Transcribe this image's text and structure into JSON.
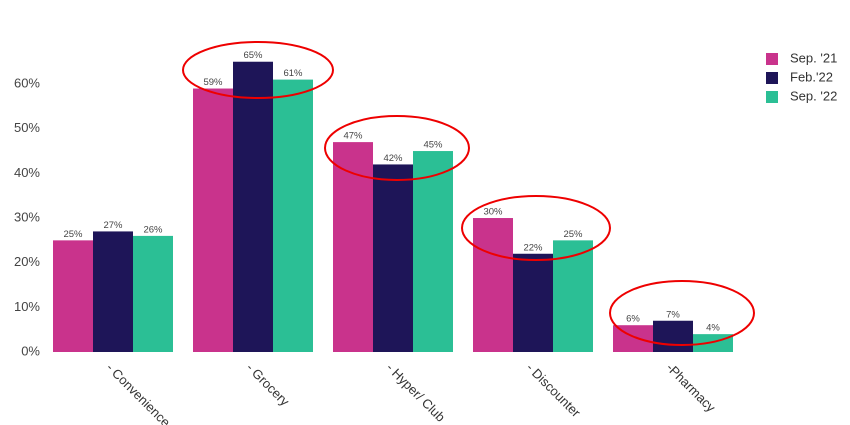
{
  "chart_data": {
    "type": "bar",
    "categories": [
      "- Convenience",
      "- Grocery",
      "- Hyper/ Club",
      "- Discounter",
      "-Pharmacy"
    ],
    "series": [
      {
        "name": "Sep. '21",
        "color": "#c9338c",
        "values": [
          25,
          59,
          47,
          30,
          6
        ],
        "value_labels": [
          "25%",
          "59%",
          "47%",
          "30%",
          "6%"
        ]
      },
      {
        "name": "Feb.'22",
        "color": "#1e1558",
        "values": [
          27,
          65,
          42,
          22,
          7
        ],
        "value_labels": [
          "27%",
          "65%",
          "42%",
          "22%",
          "7%"
        ]
      },
      {
        "name": "Sep. '22",
        "color": "#2bbf95",
        "values": [
          26,
          61,
          45,
          25,
          4
        ],
        "value_labels": [
          "26%",
          "61%",
          "45%",
          "25%",
          "4%"
        ]
      }
    ],
    "ylim": [
      0,
      70
    ],
    "yticks": [
      {
        "value": 0,
        "label": "0%"
      },
      {
        "value": 10,
        "label": "10%"
      },
      {
        "value": 20,
        "label": "20%"
      },
      {
        "value": 30,
        "label": "30%"
      },
      {
        "value": 40,
        "label": "40%"
      },
      {
        "value": 50,
        "label": "50%"
      },
      {
        "value": 60,
        "label": "60%"
      }
    ],
    "legend": "top-right"
  }
}
